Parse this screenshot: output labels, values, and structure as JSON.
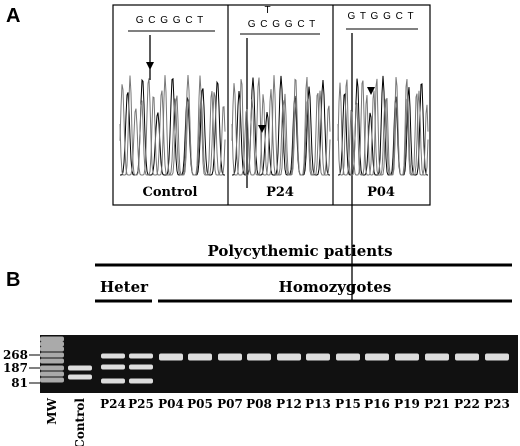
{
  "panel_a": {
    "label": "A",
    "panels": [
      {
        "sequence": "G C G G C T",
        "name": "Control"
      },
      {
        "variant": "T",
        "sequence": "G C G G C T",
        "name": "P24"
      },
      {
        "sequence": "G T G G C T",
        "name": "P04"
      }
    ]
  },
  "panel_b": {
    "label": "B",
    "group_title": "Polycythemic patients",
    "subgroups": [
      "Heter",
      "Homozygotes"
    ],
    "size_markers": [
      "268",
      "187",
      "81"
    ],
    "lanes": [
      "MW",
      "Control",
      "P24",
      "P25",
      "P04",
      "P05",
      "P07",
      "P08",
      "P12",
      "P13",
      "P15",
      "P16",
      "P19",
      "P21",
      "P22",
      "P23"
    ]
  }
}
